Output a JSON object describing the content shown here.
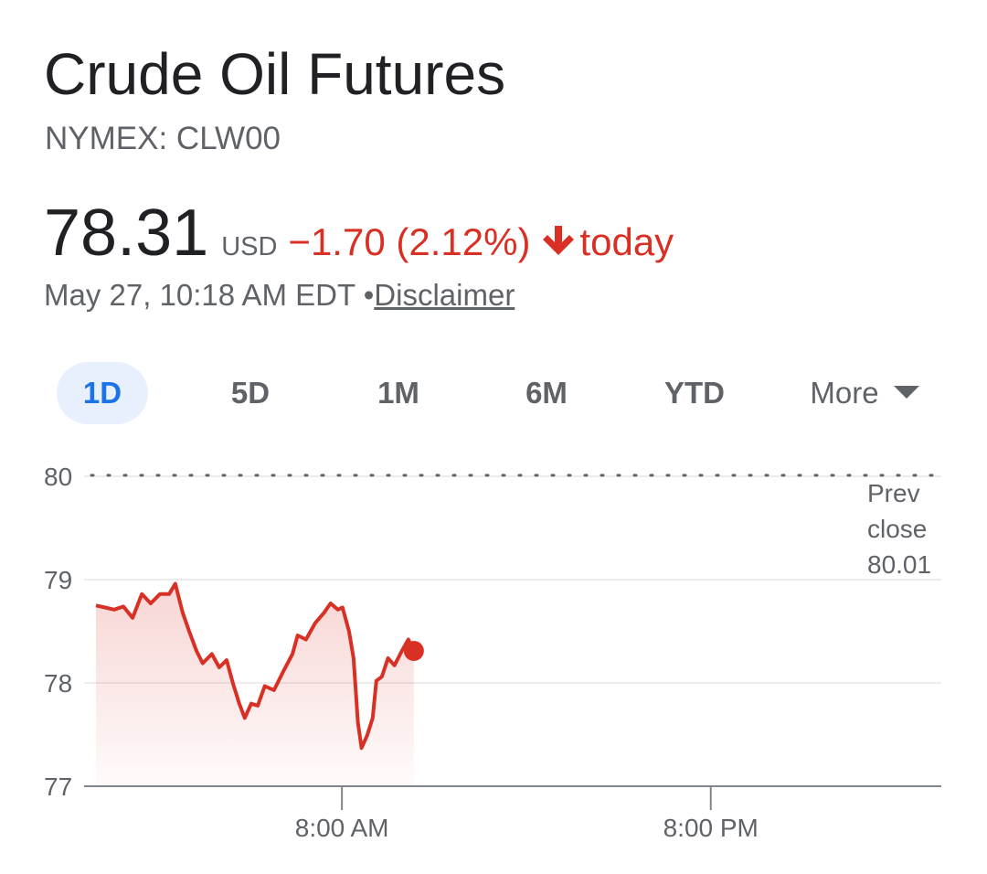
{
  "header": {
    "title": "Crude Oil Futures",
    "exchange": "NYMEX: CLW00"
  },
  "quote": {
    "price": "78.31",
    "currency": "USD",
    "change": "−1.70 (2.12%)",
    "period": "today",
    "timestamp": "May 27, 10:18 AM EDT",
    "separator": "•",
    "disclaimer": "Disclaimer"
  },
  "tabs": {
    "items": [
      "1D",
      "5D",
      "1M",
      "6M",
      "YTD",
      "More"
    ],
    "selected": 0
  },
  "chart_data": {
    "type": "line",
    "color": "#d93025",
    "x": [
      0,
      0.3,
      0.59,
      0.89,
      1.19,
      1.49,
      1.78,
      2.08,
      2.38,
      2.58,
      2.82,
      3.03,
      3.27,
      3.47,
      3.77,
      4.01,
      4.25,
      4.46,
      4.66,
      4.84,
      5.05,
      5.26,
      5.49,
      5.79,
      6.09,
      6.39,
      6.56,
      6.83,
      7.13,
      7.42,
      7.63,
      7.87,
      8.02,
      8.23,
      8.38,
      8.52,
      8.64,
      8.82,
      9.0,
      9.12,
      9.3,
      9.5,
      9.71,
      9.95,
      10.16,
      10.34
    ],
    "values": [
      78.75,
      78.73,
      78.71,
      78.74,
      78.63,
      78.86,
      78.77,
      78.86,
      78.86,
      78.96,
      78.68,
      78.5,
      78.31,
      78.19,
      78.28,
      78.15,
      78.22,
      77.99,
      77.8,
      77.66,
      77.8,
      77.78,
      77.97,
      77.93,
      78.11,
      78.28,
      78.46,
      78.42,
      78.58,
      78.68,
      78.77,
      78.71,
      78.73,
      78.5,
      78.24,
      77.62,
      77.37,
      77.49,
      77.66,
      78.02,
      78.06,
      78.24,
      78.17,
      78.31,
      78.42,
      78.31
    ],
    "xlim": [
      -0.15,
      27.5
    ],
    "xticks": [
      {
        "value": 8,
        "label": "8:00 AM"
      },
      {
        "value": 20,
        "label": "8:00 PM"
      }
    ],
    "ylim": [
      77,
      80
    ],
    "yticks": [
      77,
      78,
      79,
      80
    ],
    "grid": true,
    "prev_close_label": "Prev close",
    "prev_close": 80.01
  }
}
